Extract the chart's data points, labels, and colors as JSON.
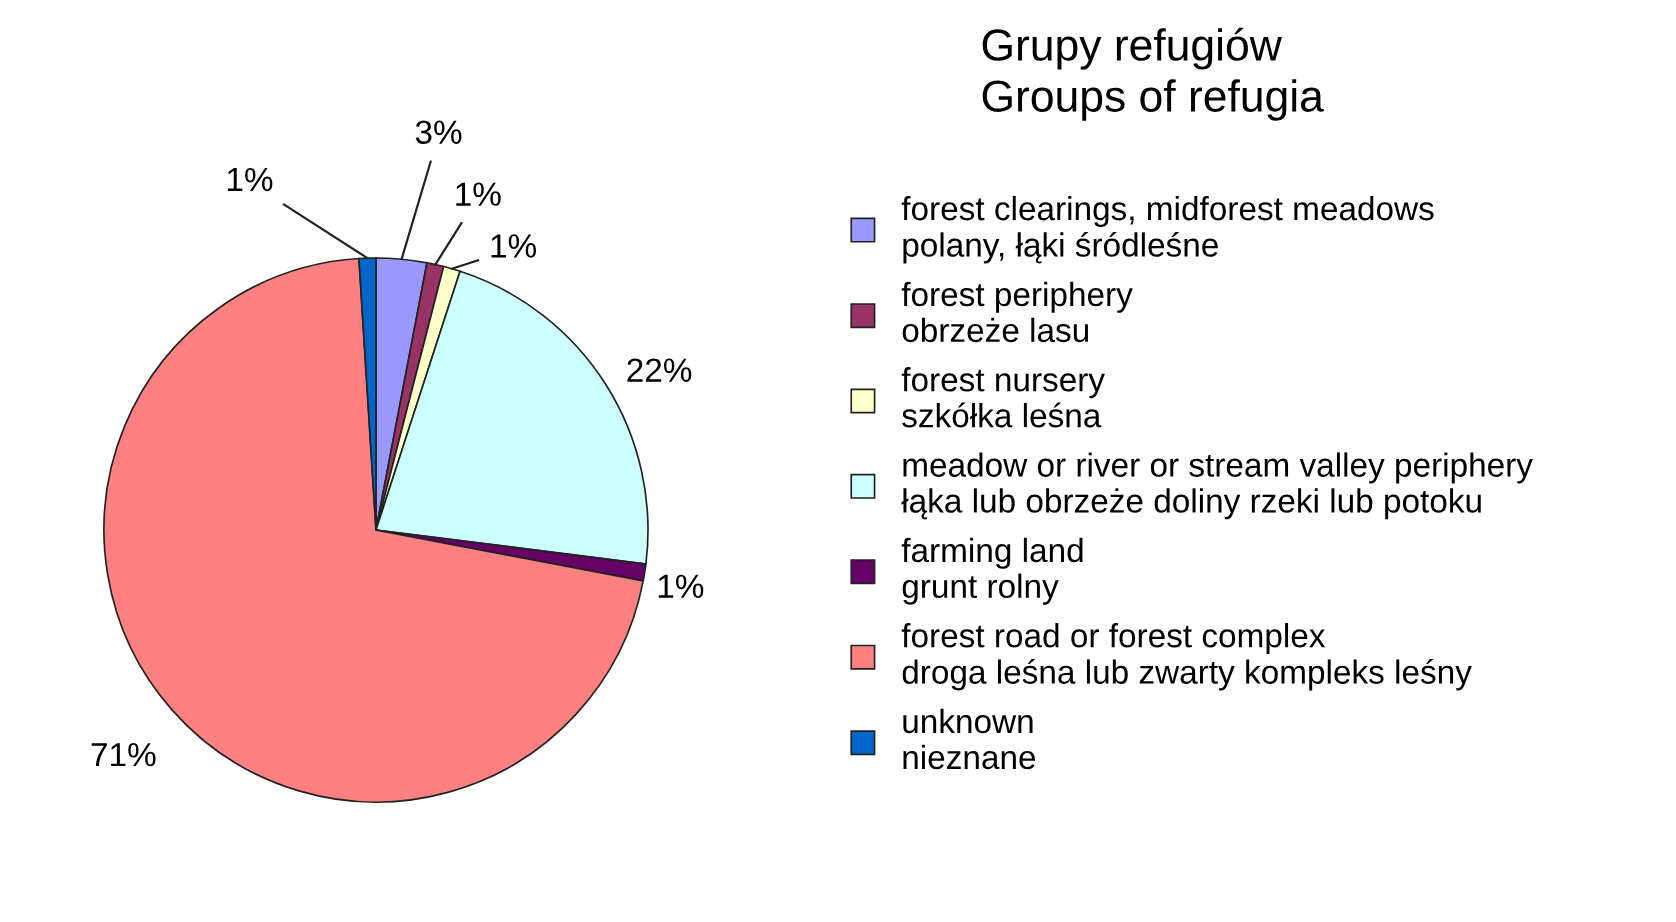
{
  "chart_data": {
    "type": "pie",
    "title": "Grupy refugiów\nGroups of refugia",
    "categories": [
      "forest clearings, midforest meadows\npolany, łąki śródleśne",
      "forest periphery\nobrzeże lasu",
      "forest nursery\nszkółka leśna",
      "meadow or river or stream valley periphery\nłąka lub obrzeże doliny rzeki lub potoku",
      "farming land\ngrunt rolny",
      "forest road or forest complex\ndroga leśna lub zwarty kompleks leśny",
      "unknown\nnieznane"
    ],
    "values": [
      3,
      1,
      1,
      22,
      1,
      71,
      1
    ],
    "value_labels": [
      "3%",
      "1%",
      "1%",
      "22%",
      "1%",
      "71%",
      "1%"
    ],
    "colors": [
      "#9999ff",
      "#993366",
      "#ffffcc",
      "#ccffff",
      "#660066",
      "#ff8080",
      "#0066cc"
    ],
    "legend": "right"
  }
}
